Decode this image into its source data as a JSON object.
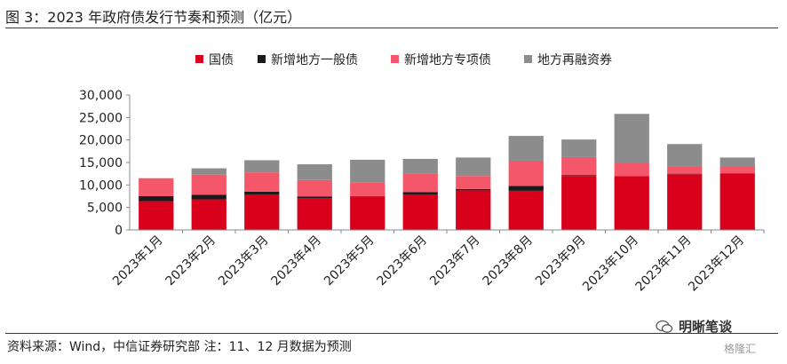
{
  "header": {
    "title": "图 3：2023 年政府债发行节奏和预测（亿元）"
  },
  "footer": {
    "source": "资料来源：Wind，中信证券研究部 注：11、12 月数据为预测",
    "brand": "明晰笔谈",
    "watermark": "格隆汇"
  },
  "colors": {
    "guozhai": "#d9001b",
    "yiban": "#1a1a1a",
    "zhuanxiang": "#f4566a",
    "zairongzi": "#8c8c8c",
    "rule": "#c00000"
  },
  "chart_data": {
    "type": "bar",
    "stacked": true,
    "title": "",
    "xlabel": "",
    "ylabel": "",
    "ylim": [
      0,
      30000
    ],
    "yticks": [
      "0",
      "5,000",
      "10,000",
      "15,000",
      "20,000",
      "25,000",
      "30,000"
    ],
    "ytick_values": [
      0,
      5000,
      10000,
      15000,
      20000,
      25000,
      30000
    ],
    "grid": false,
    "legend_position": "top",
    "categories": [
      "2023年1月",
      "2023年2月",
      "2023年3月",
      "2023年4月",
      "2023年5月",
      "2023年6月",
      "2023年7月",
      "2023年8月",
      "2023年9月",
      "2023年10月",
      "2023年11月",
      "2023年12月"
    ],
    "series": [
      {
        "name": "国债",
        "values": [
          6400,
          6800,
          7900,
          7100,
          7300,
          7900,
          8800,
          8700,
          12000,
          12000,
          12400,
          12600
        ]
      },
      {
        "name": "新增地方一般债",
        "values": [
          1100,
          1000,
          600,
          300,
          100,
          500,
          300,
          1100,
          200,
          0,
          100,
          0
        ]
      },
      {
        "name": "新增地方专项债",
        "values": [
          4000,
          4500,
          4300,
          3700,
          3200,
          4200,
          2900,
          5600,
          4000,
          2800,
          1600,
          1600
        ]
      },
      {
        "name": "地方再融资券",
        "values": [
          0,
          1400,
          2700,
          3500,
          5000,
          3200,
          4100,
          5500,
          3900,
          11000,
          5000,
          1900
        ]
      }
    ]
  }
}
